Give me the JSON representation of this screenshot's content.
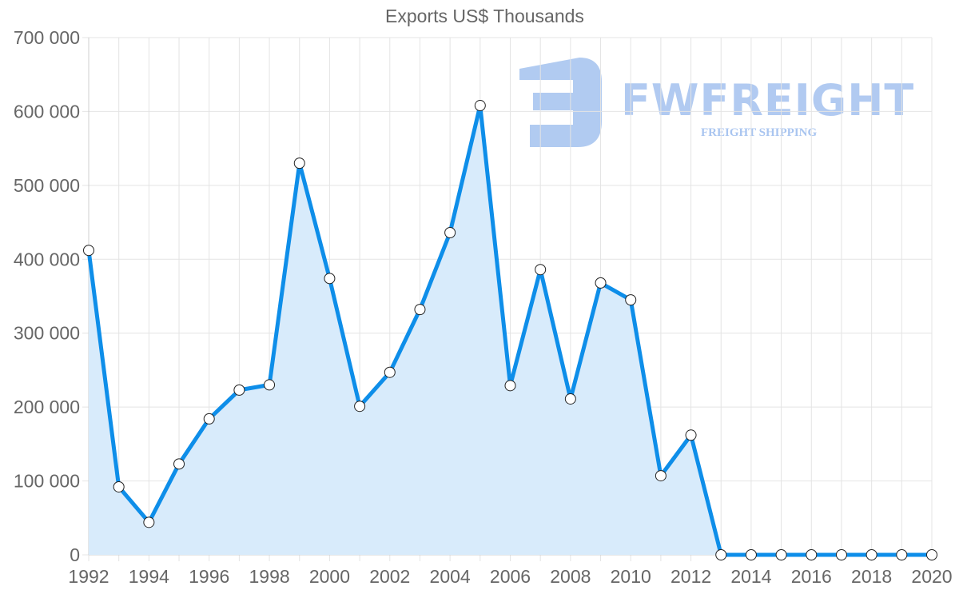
{
  "chart_data": {
    "type": "line",
    "title": "Exports US$ Thousands",
    "xlabel": "",
    "ylabel": "",
    "ylim": [
      0,
      700000
    ],
    "xlim": [
      1992,
      2020
    ],
    "grid": true,
    "legend": null,
    "fill": true,
    "y_ticks": [
      "0",
      "100 000",
      "200 000",
      "300 000",
      "400 000",
      "500 000",
      "600 000",
      "700 000"
    ],
    "x_ticks": [
      "1992",
      "1994",
      "1996",
      "1998",
      "2000",
      "2002",
      "2004",
      "2006",
      "2008",
      "2010",
      "2012",
      "2014",
      "2016",
      "2018",
      "2020"
    ],
    "x": [
      1992,
      1993,
      1994,
      1995,
      1996,
      1997,
      1998,
      1999,
      2000,
      2001,
      2002,
      2003,
      2004,
      2005,
      2006,
      2007,
      2008,
      2009,
      2010,
      2011,
      2012,
      2013,
      2014,
      2015,
      2016,
      2017,
      2018,
      2019,
      2020
    ],
    "series": [
      {
        "name": "Exports",
        "color": "#0e8ee9",
        "fill_color": "#d8ebfb",
        "values": [
          412000,
          92000,
          44000,
          123000,
          184000,
          223000,
          230000,
          530000,
          374000,
          201000,
          247000,
          332000,
          436000,
          608000,
          229000,
          386000,
          211000,
          368000,
          345000,
          107000,
          162000,
          0,
          0,
          0,
          0,
          0,
          0,
          0,
          0
        ]
      }
    ]
  },
  "watermark": {
    "brand": "FWFREIGHT",
    "tagline": "FREIGHT SHIPPING",
    "color": "#a9c5f0"
  }
}
